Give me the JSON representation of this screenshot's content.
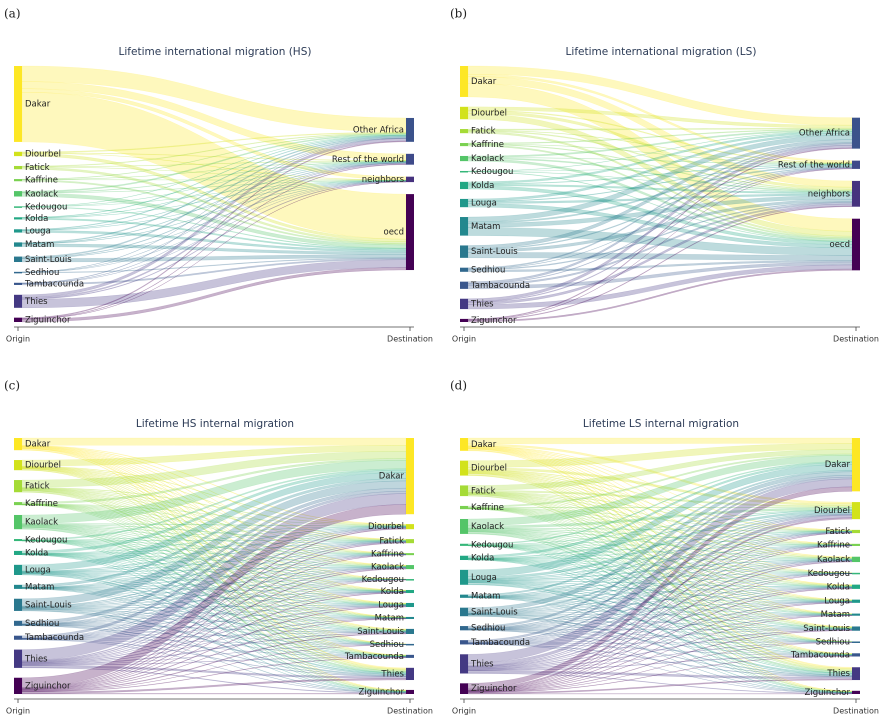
{
  "panels": [
    {
      "label": "(a)",
      "title": "Lifetime international migration (HS)",
      "origin_label": "Origin",
      "destination_label": "Destination",
      "origins": [
        {
          "name": "Dakar",
          "value": 70,
          "color": "#fde725"
        },
        {
          "name": "Diourbel",
          "value": 4,
          "color": "#d2e21b"
        },
        {
          "name": "Fatick",
          "value": 3,
          "color": "#a5db36"
        },
        {
          "name": "Kaffrine",
          "value": 2,
          "color": "#7ad151"
        },
        {
          "name": "Kaolack",
          "value": 5,
          "color": "#54c568"
        },
        {
          "name": "Kedougou",
          "value": 1,
          "color": "#35b779"
        },
        {
          "name": "Kolda",
          "value": 2,
          "color": "#22a884"
        },
        {
          "name": "Louga",
          "value": 3,
          "color": "#1f988b"
        },
        {
          "name": "Matam",
          "value": 4,
          "color": "#23888e"
        },
        {
          "name": "Saint-Louis",
          "value": 5,
          "color": "#2a788e"
        },
        {
          "name": "Sedhiou",
          "value": 1,
          "color": "#31688e"
        },
        {
          "name": "Tambacounda",
          "value": 2,
          "color": "#39568c"
        },
        {
          "name": "Thies",
          "value": 12,
          "color": "#443983"
        },
        {
          "name": "Ziguinchor",
          "value": 4,
          "color": "#440154"
        }
      ],
      "destinations": [
        {
          "name": "Other Africa",
          "value": 22,
          "color": "#3b528b"
        },
        {
          "name": "Rest of the world",
          "value": 10,
          "color": "#3e4a89"
        },
        {
          "name": "neighbors",
          "value": 5,
          "color": "#46327e"
        },
        {
          "name": "oecd",
          "value": 70,
          "color": "#440154"
        }
      ]
    },
    {
      "label": "(b)",
      "title": "Lifetime international migration (LS)",
      "origin_label": "Origin",
      "destination_label": "Destination",
      "origins": [
        {
          "name": "Dakar",
          "value": 30,
          "color": "#fde725"
        },
        {
          "name": "Diourbel",
          "value": 12,
          "color": "#d2e21b"
        },
        {
          "name": "Fatick",
          "value": 4,
          "color": "#a5db36"
        },
        {
          "name": "Kaffrine",
          "value": 3,
          "color": "#7ad151"
        },
        {
          "name": "Kaolack",
          "value": 5,
          "color": "#54c568"
        },
        {
          "name": "Kedougou",
          "value": 1,
          "color": "#35b779"
        },
        {
          "name": "Kolda",
          "value": 7,
          "color": "#22a884"
        },
        {
          "name": "Louga",
          "value": 8,
          "color": "#1f988b"
        },
        {
          "name": "Matam",
          "value": 18,
          "color": "#23888e"
        },
        {
          "name": "Saint-Louis",
          "value": 12,
          "color": "#2a788e"
        },
        {
          "name": "Sedhiou",
          "value": 4,
          "color": "#31688e"
        },
        {
          "name": "Tambacounda",
          "value": 7,
          "color": "#39568c"
        },
        {
          "name": "Thies",
          "value": 10,
          "color": "#443983"
        },
        {
          "name": "Ziguinchor",
          "value": 3,
          "color": "#440154"
        }
      ],
      "destinations": [
        {
          "name": "Other Africa",
          "value": 30,
          "color": "#3b528b"
        },
        {
          "name": "Rest of the world",
          "value": 8,
          "color": "#3e4a89"
        },
        {
          "name": "neighbors",
          "value": 25,
          "color": "#46327e"
        },
        {
          "name": "oecd",
          "value": 50,
          "color": "#440154"
        }
      ]
    },
    {
      "label": "(c)",
      "title": "Lifetime HS internal migration",
      "origin_label": "Origin",
      "destination_label": "Destination",
      "origins": [
        {
          "name": "Dakar",
          "value": 12,
          "color": "#fde725"
        },
        {
          "name": "Diourbel",
          "value": 10,
          "color": "#d2e21b"
        },
        {
          "name": "Fatick",
          "value": 12,
          "color": "#a5db36"
        },
        {
          "name": "Kaffrine",
          "value": 3,
          "color": "#7ad151"
        },
        {
          "name": "Kaolack",
          "value": 14,
          "color": "#54c568"
        },
        {
          "name": "Kedougou",
          "value": 2,
          "color": "#35b779"
        },
        {
          "name": "Kolda",
          "value": 4,
          "color": "#22a884"
        },
        {
          "name": "Louga",
          "value": 10,
          "color": "#1f988b"
        },
        {
          "name": "Matam",
          "value": 4,
          "color": "#23888e"
        },
        {
          "name": "Saint-Louis",
          "value": 12,
          "color": "#2a788e"
        },
        {
          "name": "Sedhiou",
          "value": 5,
          "color": "#31688e"
        },
        {
          "name": "Tambacounda",
          "value": 4,
          "color": "#39568c"
        },
        {
          "name": "Thies",
          "value": 18,
          "color": "#443983"
        },
        {
          "name": "Ziguinchor",
          "value": 16,
          "color": "#440154"
        }
      ],
      "destinations": [
        {
          "name": "Dakar",
          "value": 75,
          "color": "#fde725"
        },
        {
          "name": "Diourbel",
          "value": 5,
          "color": "#d2e21b"
        },
        {
          "name": "Fatick",
          "value": 4,
          "color": "#a5db36"
        },
        {
          "name": "Kaffrine",
          "value": 2,
          "color": "#7ad151"
        },
        {
          "name": "Kaolack",
          "value": 4,
          "color": "#54c568"
        },
        {
          "name": "Kedougou",
          "value": 1,
          "color": "#35b779"
        },
        {
          "name": "Kolda",
          "value": 3,
          "color": "#22a884"
        },
        {
          "name": "Louga",
          "value": 4,
          "color": "#1f988b"
        },
        {
          "name": "Matam",
          "value": 2,
          "color": "#23888e"
        },
        {
          "name": "Saint-Louis",
          "value": 5,
          "color": "#2a788e"
        },
        {
          "name": "Sedhiou",
          "value": 1,
          "color": "#31688e"
        },
        {
          "name": "Tambacounda",
          "value": 3,
          "color": "#39568c"
        },
        {
          "name": "Thies",
          "value": 12,
          "color": "#443983"
        },
        {
          "name": "Ziguinchor",
          "value": 4,
          "color": "#440154"
        }
      ]
    },
    {
      "label": "(d)",
      "title": "Lifetime LS internal migration",
      "origin_label": "Origin",
      "destination_label": "Destination",
      "origins": [
        {
          "name": "Dakar",
          "value": 12,
          "color": "#fde725"
        },
        {
          "name": "Diourbel",
          "value": 14,
          "color": "#d2e21b"
        },
        {
          "name": "Fatick",
          "value": 10,
          "color": "#a5db36"
        },
        {
          "name": "Kaffrine",
          "value": 3,
          "color": "#7ad151"
        },
        {
          "name": "Kaolack",
          "value": 14,
          "color": "#54c568"
        },
        {
          "name": "Kedougou",
          "value": 2,
          "color": "#35b779"
        },
        {
          "name": "Kolda",
          "value": 4,
          "color": "#22a884"
        },
        {
          "name": "Louga",
          "value": 14,
          "color": "#1f988b"
        },
        {
          "name": "Matam",
          "value": 3,
          "color": "#23888e"
        },
        {
          "name": "Saint-Louis",
          "value": 8,
          "color": "#2a788e"
        },
        {
          "name": "Sedhiou",
          "value": 4,
          "color": "#31688e"
        },
        {
          "name": "Tambacounda",
          "value": 4,
          "color": "#39568c"
        },
        {
          "name": "Thies",
          "value": 18,
          "color": "#443983"
        },
        {
          "name": "Ziguinchor",
          "value": 10,
          "color": "#440154"
        }
      ],
      "destinations": [
        {
          "name": "Dakar",
          "value": 50,
          "color": "#fde725"
        },
        {
          "name": "Diourbel",
          "value": 16,
          "color": "#d2e21b"
        },
        {
          "name": "Fatick",
          "value": 3,
          "color": "#a5db36"
        },
        {
          "name": "Kaffrine",
          "value": 2,
          "color": "#7ad151"
        },
        {
          "name": "Kaolack",
          "value": 5,
          "color": "#54c568"
        },
        {
          "name": "Kedougou",
          "value": 1,
          "color": "#35b779"
        },
        {
          "name": "Kolda",
          "value": 4,
          "color": "#22a884"
        },
        {
          "name": "Louga",
          "value": 3,
          "color": "#1f988b"
        },
        {
          "name": "Matam",
          "value": 2,
          "color": "#23888e"
        },
        {
          "name": "Saint-Louis",
          "value": 4,
          "color": "#2a788e"
        },
        {
          "name": "Sedhiou",
          "value": 1,
          "color": "#31688e"
        },
        {
          "name": "Tambacounda",
          "value": 3,
          "color": "#39568c"
        },
        {
          "name": "Thies",
          "value": 12,
          "color": "#443983"
        },
        {
          "name": "Ziguinchor",
          "value": 3,
          "color": "#440154"
        }
      ]
    }
  ]
}
